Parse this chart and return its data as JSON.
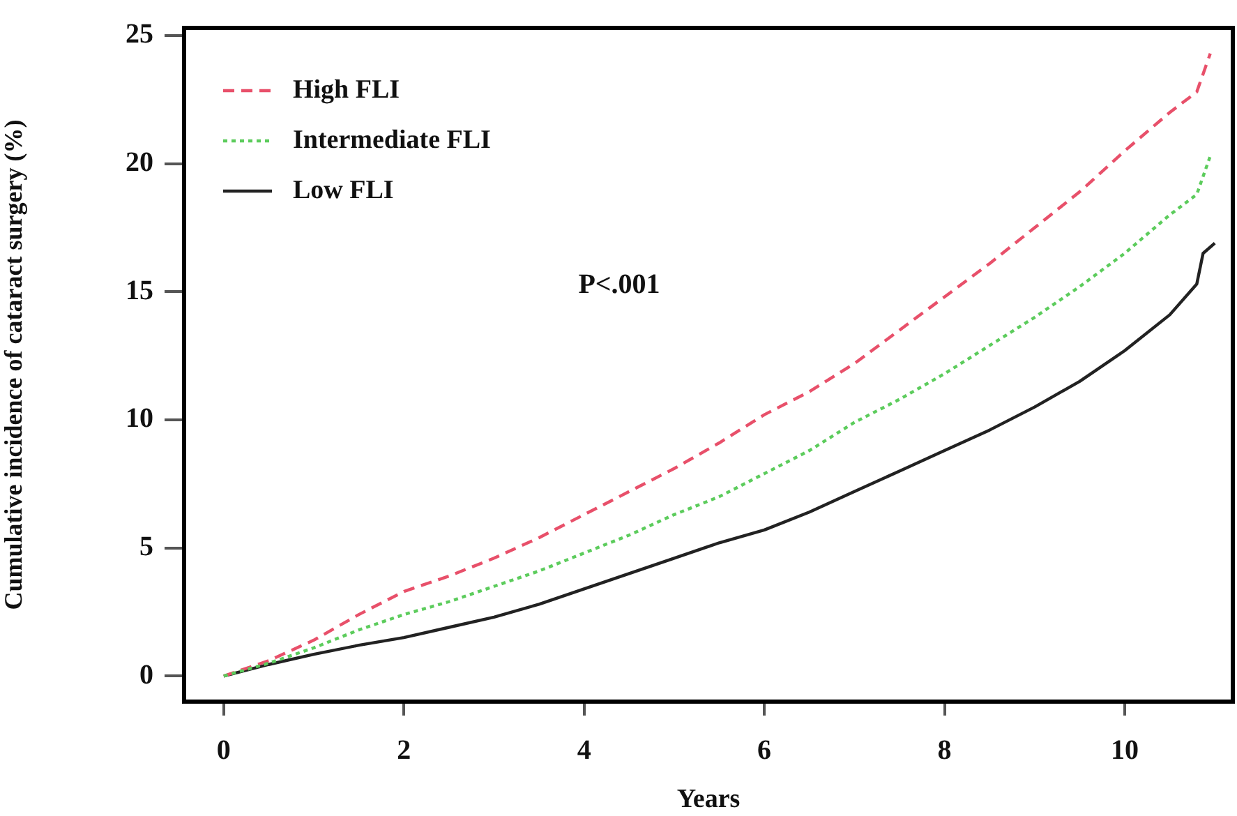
{
  "chart_data": {
    "type": "line",
    "xlabel": "Years",
    "ylabel": "Cumulative incidence of cataract surgery (%)",
    "xlim": [
      -0.44,
      11.2
    ],
    "ylim": [
      -1,
      25.3
    ],
    "xticks": [
      0,
      2,
      4,
      6,
      8,
      10
    ],
    "yticks": [
      0,
      5,
      10,
      15,
      20,
      25
    ],
    "grid": false,
    "legend": "top left",
    "marker": "none",
    "annotations": [
      "P<.001"
    ],
    "series": [
      {
        "name": "High FLI",
        "color": "#e8506a",
        "line_style": "dashed",
        "x": [
          0,
          0.5,
          1,
          1.5,
          2,
          2.5,
          3,
          3.5,
          4,
          4.5,
          5,
          5.5,
          6,
          6.5,
          7,
          7.5,
          8,
          8.5,
          9,
          9.5,
          10,
          10.5,
          10.8,
          10.95
        ],
        "values": [
          0,
          0.6,
          1.4,
          2.4,
          3.3,
          3.9,
          4.6,
          5.4,
          6.3,
          7.2,
          8.1,
          9.1,
          10.2,
          11.1,
          12.2,
          13.5,
          14.8,
          16.1,
          17.5,
          18.9,
          20.5,
          22,
          22.8,
          24.3
        ]
      },
      {
        "name": "Intermediate FLI",
        "color": "#5ccc5c",
        "line_style": "dotted",
        "x": [
          0,
          0.5,
          1,
          1.5,
          2,
          2.5,
          3,
          3.5,
          4,
          4.5,
          5,
          5.5,
          6,
          6.5,
          7,
          7.5,
          8,
          8.5,
          9,
          9.5,
          10,
          10.5,
          10.8,
          10.95
        ],
        "values": [
          0,
          0.5,
          1.1,
          1.8,
          2.4,
          2.9,
          3.5,
          4.1,
          4.8,
          5.5,
          6.3,
          7,
          7.9,
          8.8,
          9.9,
          10.8,
          11.8,
          12.9,
          14,
          15.2,
          16.5,
          18,
          18.8,
          20.3
        ]
      },
      {
        "name": "Low FLI",
        "color": "#222222",
        "line_style": "solid",
        "x": [
          0,
          0.5,
          1,
          1.5,
          2,
          2.5,
          3,
          3.5,
          4,
          4.5,
          5,
          5.5,
          6,
          6.5,
          7,
          7.5,
          8,
          8.5,
          9,
          9.5,
          10,
          10.5,
          10.8,
          10.87,
          11
        ],
        "values": [
          0,
          0.45,
          0.85,
          1.2,
          1.5,
          1.9,
          2.3,
          2.8,
          3.4,
          4,
          4.6,
          5.2,
          5.7,
          6.4,
          7.2,
          8,
          8.8,
          9.6,
          10.5,
          11.5,
          12.7,
          14.1,
          15.3,
          16.5,
          16.9
        ]
      }
    ]
  }
}
